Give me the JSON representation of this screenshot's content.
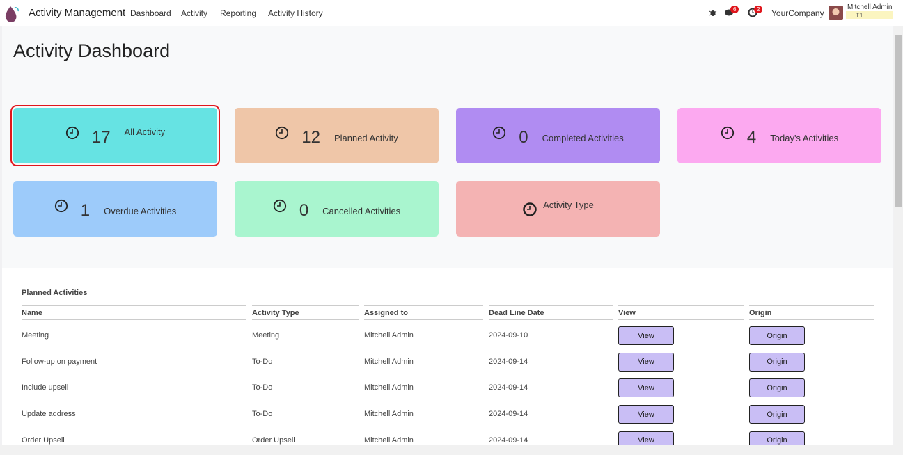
{
  "header": {
    "app_name": "Activity Management",
    "menu": [
      "Dashboard",
      "Activity",
      "Reporting",
      "Activity History"
    ],
    "chat_badge": 6,
    "activity_badge": 2,
    "company": "YourCompany",
    "user": "Mitchell Admin",
    "database": "T1"
  },
  "title": "Activity Dashboard",
  "cards": [
    {
      "count": 17,
      "label": "All Activity"
    },
    {
      "count": 12,
      "label": "Planned Activity"
    },
    {
      "count": 0,
      "label": "Completed Activities"
    },
    {
      "count": 4,
      "label": "Today's Activities"
    },
    {
      "count": 1,
      "label": "Overdue Activities"
    },
    {
      "count": 0,
      "label": "Cancelled Activities"
    },
    {
      "label": "Activity Type"
    }
  ],
  "table": {
    "title": "Planned Activities",
    "columns": [
      "Name",
      "Activity Type",
      "Assigned to",
      "Dead Line Date",
      "View",
      "Origin"
    ],
    "rows": [
      [
        "Meeting",
        "Meeting",
        "Mitchell Admin",
        "2024-09-10",
        "View",
        "Origin"
      ],
      [
        "Follow-up on payment",
        "To-Do",
        "Mitchell Admin",
        "2024-09-14",
        "View",
        "Origin"
      ],
      [
        "Include upsell",
        "To-Do",
        "Mitchell Admin",
        "2024-09-14",
        "View",
        "Origin"
      ],
      [
        "Update address",
        "To-Do",
        "Mitchell Admin",
        "2024-09-14",
        "View",
        "Origin"
      ],
      [
        "Order Upsell",
        "Order Upsell",
        "Mitchell Admin",
        "2024-09-14",
        "View",
        "Origin"
      ]
    ]
  }
}
